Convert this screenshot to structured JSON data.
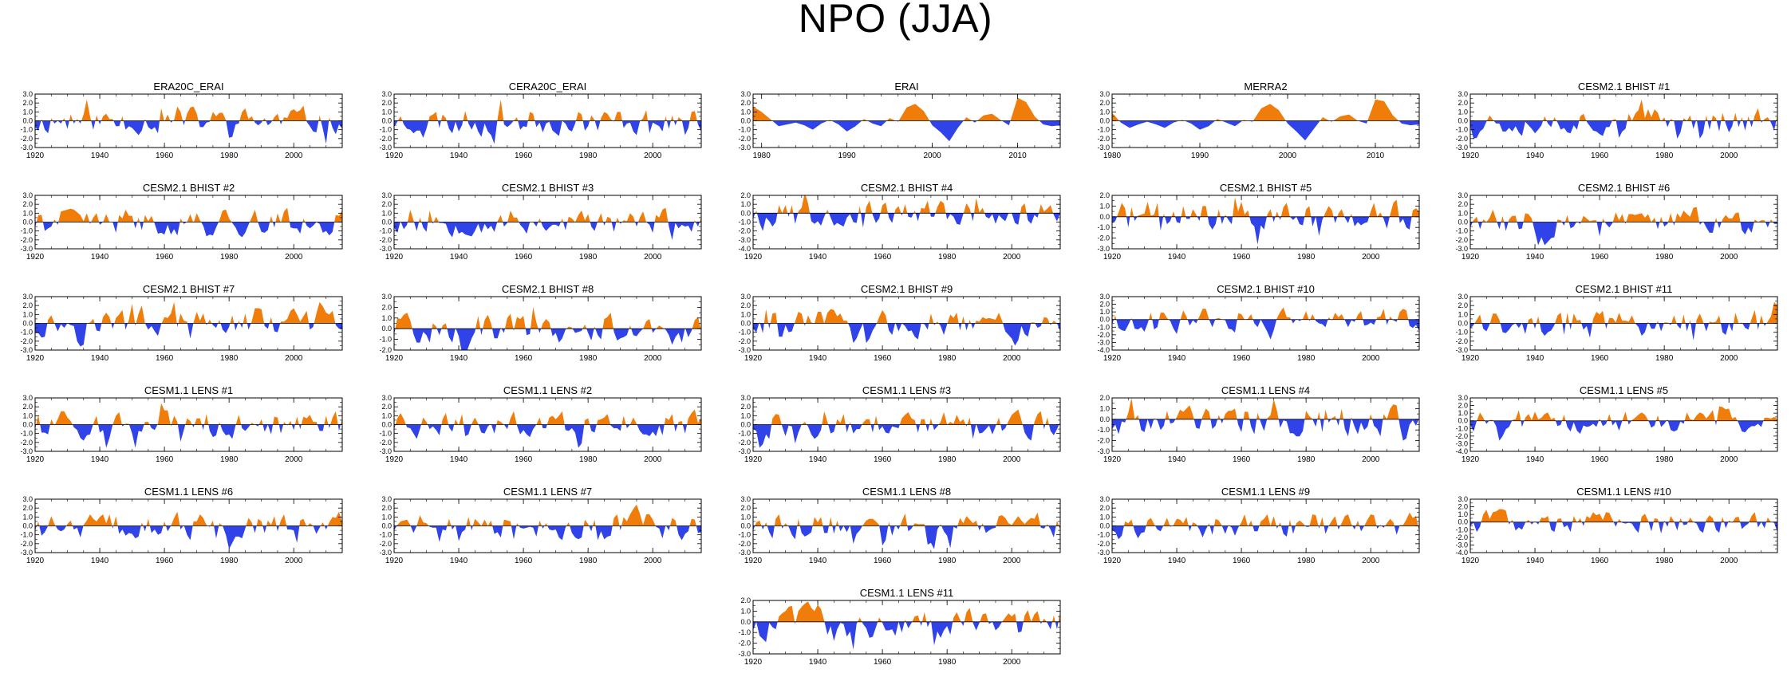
{
  "title": "NPO (JJA)",
  "colors": {
    "positive": "#f07d0a",
    "negative": "#2f43e8",
    "axis": "#000000"
  },
  "chart_data": [
    {
      "type": "area",
      "title": "ERA20C_ERAI",
      "x_range": [
        1920,
        2015
      ],
      "x_ticks": [
        1920,
        1940,
        1960,
        1980,
        2000
      ],
      "y_range": [
        -3,
        3
      ],
      "y_ticks": [
        "3.0",
        "2.0",
        "1.0",
        "0.0",
        "-1.0",
        "-2.0",
        "-3.0"
      ],
      "seed": 11
    },
    {
      "type": "area",
      "title": "CERA20C_ERAI",
      "x_range": [
        1920,
        2015
      ],
      "x_ticks": [
        1920,
        1940,
        1960,
        1980,
        2000
      ],
      "y_range": [
        -3,
        3
      ],
      "y_ticks": [
        "3.0",
        "2.0",
        "1.0",
        "0.0",
        "-1.0",
        "-2.0",
        "-3.0"
      ],
      "seed": 23
    },
    {
      "type": "area",
      "title": "ERAI",
      "x_range": [
        1979,
        2015
      ],
      "x_ticks": [
        1980,
        1990,
        2000,
        2010
      ],
      "y_range": [
        -3,
        3
      ],
      "y_ticks": [
        "3.0",
        "2.0",
        "1.0",
        "0.0",
        "-1.0",
        "-2.0",
        "-3.0"
      ],
      "seed": 0,
      "values": [
        1.6,
        1.0,
        0.2,
        -0.6,
        -0.4,
        -0.2,
        -0.5,
        -1.0,
        -0.3,
        0.1,
        -0.4,
        -1.2,
        -0.6,
        0.2,
        -0.3,
        -0.6,
        0.3,
        -0.1,
        1.5,
        1.9,
        1.1,
        -0.5,
        -1.3,
        -2.3,
        -0.8,
        0.4,
        -0.2,
        0.6,
        0.8,
        0.1,
        -0.5,
        2.6,
        2.1,
        0.5,
        -0.4,
        -0.6,
        -0.5
      ]
    },
    {
      "type": "area",
      "title": "MERRA2",
      "x_range": [
        1980,
        2015
      ],
      "x_ticks": [
        1980,
        1990,
        2000,
        2010
      ],
      "y_range": [
        -3,
        3
      ],
      "y_ticks": [
        "3.0",
        "2.0",
        "1.0",
        "0.0",
        "-1.0",
        "-2.0",
        "-3.0"
      ],
      "seed": 0,
      "values": [
        0.9,
        -0.2,
        -0.8,
        -0.4,
        -0.1,
        -0.4,
        -0.8,
        -0.2,
        0.1,
        -0.3,
        -1.0,
        -0.6,
        0.2,
        -0.2,
        -0.6,
        0.1,
        -0.1,
        1.4,
        1.9,
        1.2,
        -0.3,
        -1.2,
        -2.2,
        -0.9,
        0.4,
        -0.1,
        0.5,
        0.7,
        0.0,
        -0.3,
        2.4,
        2.2,
        0.6,
        -0.3,
        -0.5,
        -0.4
      ]
    },
    {
      "type": "area",
      "title": "CESM2.1 BHIST #1",
      "x_range": [
        1920,
        2015
      ],
      "x_ticks": [
        1920,
        1940,
        1960,
        1980,
        2000
      ],
      "y_range": [
        -3,
        3
      ],
      "y_ticks": [
        "3.0",
        "2.0",
        "1.0",
        "0.0",
        "-1.0",
        "-2.0",
        "-3.0"
      ],
      "seed": 37
    },
    {
      "type": "area",
      "title": "CESM2.1 BHIST #2",
      "x_range": [
        1920,
        2015
      ],
      "x_ticks": [
        1920,
        1940,
        1960,
        1980,
        2000
      ],
      "y_range": [
        -3,
        3
      ],
      "y_ticks": [
        "3.0",
        "2.0",
        "1.0",
        "0.0",
        "-1.0",
        "-2.0",
        "-3.0"
      ],
      "seed": 41
    },
    {
      "type": "area",
      "title": "CESM2.1 BHIST #3",
      "x_range": [
        1920,
        2015
      ],
      "x_ticks": [
        1920,
        1940,
        1960,
        1980,
        2000
      ],
      "y_range": [
        -3,
        3
      ],
      "y_ticks": [
        "3.0",
        "2.0",
        "1.0",
        "0.0",
        "-1.0",
        "-2.0",
        "-3.0"
      ],
      "seed": 53
    },
    {
      "type": "area",
      "title": "CESM2.1 BHIST #4",
      "x_range": [
        1920,
        2015
      ],
      "x_ticks": [
        1920,
        1940,
        1960,
        1980,
        2000
      ],
      "y_range": [
        -4,
        2
      ],
      "y_ticks": [
        "2.0",
        "1.0",
        "0.0",
        "-1.0",
        "-2.0",
        "-3.0",
        "-4.0"
      ],
      "seed": 67
    },
    {
      "type": "area",
      "title": "CESM2.1 BHIST #5",
      "x_range": [
        1920,
        2015
      ],
      "x_ticks": [
        1920,
        1940,
        1960,
        1980,
        2000
      ],
      "y_range": [
        -3,
        2
      ],
      "y_ticks": [
        "2.0",
        "1.0",
        "0.0",
        "-1.0",
        "-2.0",
        "-3.0"
      ],
      "seed": 71
    },
    {
      "type": "area",
      "title": "CESM2.1 BHIST #6",
      "x_range": [
        1920,
        2015
      ],
      "x_ticks": [
        1920,
        1940,
        1960,
        1980,
        2000
      ],
      "y_range": [
        -3,
        3
      ],
      "y_ticks": [
        "3.0",
        "2.0",
        "1.0",
        "0.0",
        "-1.0",
        "-2.0",
        "-3.0"
      ],
      "seed": 83
    },
    {
      "type": "area",
      "title": "CESM2.1 BHIST #7",
      "x_range": [
        1920,
        2015
      ],
      "x_ticks": [
        1920,
        1940,
        1960,
        1980,
        2000
      ],
      "y_range": [
        -3,
        3
      ],
      "y_ticks": [
        "3.0",
        "2.0",
        "1.0",
        "0.0",
        "-1.0",
        "-2.0",
        "-3.0"
      ],
      "seed": 97
    },
    {
      "type": "area",
      "title": "CESM2.1 BHIST #8",
      "x_range": [
        1920,
        2015
      ],
      "x_ticks": [
        1920,
        1940,
        1960,
        1980,
        2000
      ],
      "y_range": [
        -2,
        3
      ],
      "y_ticks": [
        "3.0",
        "2.0",
        "1.0",
        "0.0",
        "-1.0",
        "-2.0"
      ],
      "seed": 101
    },
    {
      "type": "area",
      "title": "CESM2.1 BHIST #9",
      "x_range": [
        1920,
        2015
      ],
      "x_ticks": [
        1920,
        1940,
        1960,
        1980,
        2000
      ],
      "y_range": [
        -3,
        3
      ],
      "y_ticks": [
        "3.0",
        "2.0",
        "1.0",
        "0.0",
        "-1.0",
        "-2.0",
        "-3.0"
      ],
      "seed": 113
    },
    {
      "type": "area",
      "title": "CESM2.1 BHIST #10",
      "x_range": [
        1920,
        2015
      ],
      "x_ticks": [
        1920,
        1940,
        1960,
        1980,
        2000
      ],
      "y_range": [
        -4,
        3
      ],
      "y_ticks": [
        "3.0",
        "2.0",
        "1.0",
        "0.0",
        "-1.0",
        "-2.0",
        "-3.0",
        "-4.0"
      ],
      "seed": 127
    },
    {
      "type": "area",
      "title": "CESM2.1 BHIST #11",
      "x_range": [
        1920,
        2015
      ],
      "x_ticks": [
        1920,
        1940,
        1960,
        1980,
        2000
      ],
      "y_range": [
        -3,
        3
      ],
      "y_ticks": [
        "3.0",
        "2.0",
        "1.0",
        "0.0",
        "-1.0",
        "-2.0",
        "-3.0"
      ],
      "seed": 131
    },
    {
      "type": "area",
      "title": "CESM1.1 LENS #1",
      "x_range": [
        1920,
        2015
      ],
      "x_ticks": [
        1920,
        1940,
        1960,
        1980,
        2000
      ],
      "y_range": [
        -3,
        3
      ],
      "y_ticks": [
        "3.0",
        "2.0",
        "1.0",
        "0.0",
        "-1.0",
        "-2.0",
        "-3.0"
      ],
      "seed": 139
    },
    {
      "type": "area",
      "title": "CESM1.1 LENS #2",
      "x_range": [
        1920,
        2015
      ],
      "x_ticks": [
        1920,
        1940,
        1960,
        1980,
        2000
      ],
      "y_range": [
        -3,
        3
      ],
      "y_ticks": [
        "3.0",
        "2.0",
        "1.0",
        "0.0",
        "-1.0",
        "-2.0",
        "-3.0"
      ],
      "seed": 149
    },
    {
      "type": "area",
      "title": "CESM1.1 LENS #3",
      "x_range": [
        1920,
        2015
      ],
      "x_ticks": [
        1920,
        1940,
        1960,
        1980,
        2000
      ],
      "y_range": [
        -3,
        3
      ],
      "y_ticks": [
        "3.0",
        "2.0",
        "1.0",
        "0.0",
        "-1.0",
        "-2.0",
        "-3.0"
      ],
      "seed": 157
    },
    {
      "type": "area",
      "title": "CESM1.1 LENS #4",
      "x_range": [
        1920,
        2015
      ],
      "x_ticks": [
        1920,
        1940,
        1960,
        1980,
        2000
      ],
      "y_range": [
        -3,
        2
      ],
      "y_ticks": [
        "2.0",
        "1.0",
        "0.0",
        "-1.0",
        "-2.0",
        "-3.0"
      ],
      "seed": 163
    },
    {
      "type": "area",
      "title": "CESM1.1 LENS #5",
      "x_range": [
        1920,
        2015
      ],
      "x_ticks": [
        1920,
        1940,
        1960,
        1980,
        2000
      ],
      "y_range": [
        -4,
        3
      ],
      "y_ticks": [
        "3.0",
        "2.0",
        "1.0",
        "0.0",
        "-1.0",
        "-2.0",
        "-3.0",
        "-4.0"
      ],
      "seed": 173
    },
    {
      "type": "area",
      "title": "CESM1.1 LENS #6",
      "x_range": [
        1920,
        2015
      ],
      "x_ticks": [
        1920,
        1940,
        1960,
        1980,
        2000
      ],
      "y_range": [
        -3,
        3
      ],
      "y_ticks": [
        "3.0",
        "2.0",
        "1.0",
        "0.0",
        "-1.0",
        "-2.0",
        "-3.0"
      ],
      "seed": 181
    },
    {
      "type": "area",
      "title": "CESM1.1 LENS #7",
      "x_range": [
        1920,
        2015
      ],
      "x_ticks": [
        1920,
        1940,
        1960,
        1980,
        2000
      ],
      "y_range": [
        -3,
        3
      ],
      "y_ticks": [
        "3.0",
        "2.0",
        "1.0",
        "0.0",
        "-1.0",
        "-2.0",
        "-3.0"
      ],
      "seed": 191
    },
    {
      "type": "area",
      "title": "CESM1.1 LENS #8",
      "x_range": [
        1920,
        2015
      ],
      "x_ticks": [
        1920,
        1940,
        1960,
        1980,
        2000
      ],
      "y_range": [
        -3,
        3
      ],
      "y_ticks": [
        "3.0",
        "2.0",
        "1.0",
        "0.0",
        "-1.0",
        "-2.0",
        "-3.0"
      ],
      "seed": 197
    },
    {
      "type": "area",
      "title": "CESM1.1 LENS #9",
      "x_range": [
        1920,
        2015
      ],
      "x_ticks": [
        1920,
        1940,
        1960,
        1980,
        2000
      ],
      "y_range": [
        -3,
        3
      ],
      "y_ticks": [
        "3.0",
        "2.0",
        "1.0",
        "0.0",
        "-1.0",
        "-2.0",
        "-3.0"
      ],
      "seed": 211
    },
    {
      "type": "area",
      "title": "CESM1.1 LENS #10",
      "x_range": [
        1920,
        2015
      ],
      "x_ticks": [
        1920,
        1940,
        1960,
        1980,
        2000
      ],
      "y_range": [
        -4,
        3
      ],
      "y_ticks": [
        "3.0",
        "2.0",
        "1.0",
        "0.0",
        "-1.0",
        "-2.0",
        "-3.0",
        "-4.0"
      ],
      "seed": 223
    },
    {
      "type": "area",
      "title": "CESM1.1 LENS #11",
      "x_range": [
        1920,
        2015
      ],
      "x_ticks": [
        1920,
        1940,
        1960,
        1980,
        2000
      ],
      "y_range": [
        -3,
        2
      ],
      "y_ticks": [
        "2.0",
        "1.0",
        "0.0",
        "-1.0",
        "-2.0",
        "-3.0"
      ],
      "seed": 229
    }
  ]
}
